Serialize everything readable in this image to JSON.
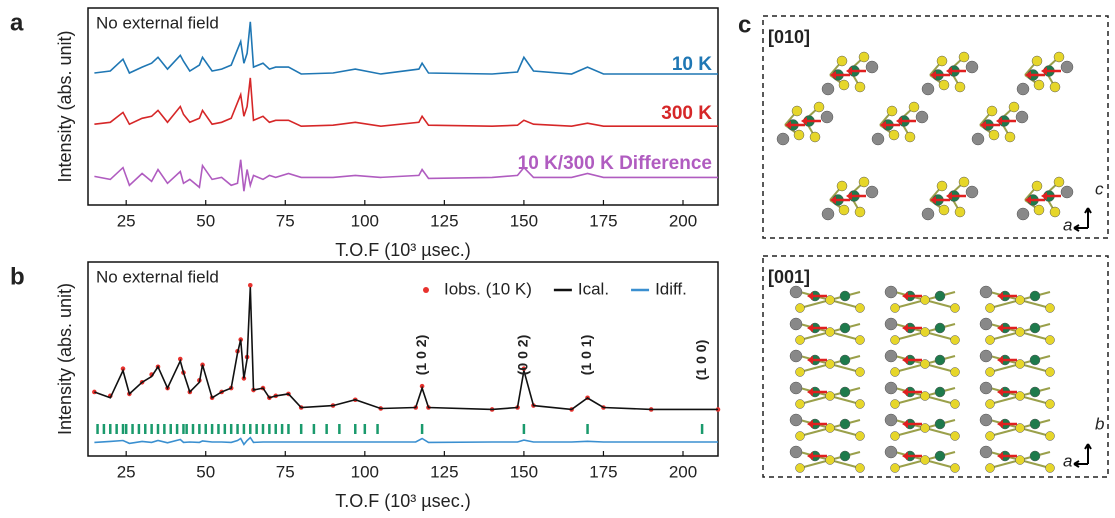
{
  "chart_data": [
    {
      "type": "line",
      "panel_label": "a",
      "annotation": "No external field",
      "x_label": "T.O.F (10³ µsec.)",
      "y_label": "Intensity (abs. unit)",
      "xlim": [
        13,
        211
      ],
      "xticks": [
        25,
        50,
        75,
        100,
        125,
        150,
        175,
        200
      ],
      "ylim": [
        0,
        10
      ],
      "x": [
        15,
        20,
        24,
        26,
        30,
        33,
        35,
        38,
        42,
        43,
        45,
        48,
        49,
        52,
        55,
        58,
        60,
        61,
        62,
        63,
        64,
        65,
        68,
        70,
        72,
        76,
        80,
        90,
        97,
        105,
        117,
        118,
        120,
        140,
        148,
        150,
        153,
        165,
        170,
        175,
        190,
        211
      ],
      "series": [
        {
          "name": "10 K",
          "color": "#1f77b4",
          "values": [
            6.7,
            6.8,
            7.4,
            6.7,
            7.0,
            7.2,
            7.5,
            6.9,
            7.6,
            7.3,
            6.8,
            7.1,
            7.5,
            6.8,
            6.9,
            7.1,
            7.9,
            8.3,
            7.2,
            7.7,
            9.3,
            7.0,
            7.2,
            6.9,
            7.0,
            7.0,
            6.65,
            6.7,
            6.9,
            6.65,
            6.9,
            7.2,
            6.7,
            6.65,
            6.75,
            7.5,
            6.8,
            6.65,
            7.0,
            6.65,
            6.65,
            6.65
          ]
        },
        {
          "name": "300 K",
          "color": "#d62728",
          "values": [
            4.1,
            4.2,
            4.7,
            4.1,
            4.4,
            4.5,
            4.8,
            4.2,
            5.0,
            4.6,
            4.2,
            4.4,
            4.8,
            4.1,
            4.2,
            4.4,
            5.2,
            5.6,
            4.5,
            5.0,
            6.45,
            4.3,
            4.5,
            4.2,
            4.3,
            4.3,
            4.0,
            4.05,
            4.2,
            4.0,
            4.2,
            4.5,
            4.05,
            4.0,
            4.05,
            4.3,
            4.1,
            4.0,
            4.15,
            4.0,
            4.0,
            4.0
          ]
        },
        {
          "name": "10 K/300 K Difference",
          "color": "#b05cc0",
          "values": [
            1.45,
            1.3,
            1.9,
            1.0,
            1.6,
            1.2,
            1.8,
            1.1,
            1.7,
            1.1,
            1.3,
            0.9,
            2.0,
            1.3,
            1.4,
            1.0,
            1.1,
            2.3,
            0.7,
            1.8,
            1.0,
            1.5,
            1.3,
            1.5,
            1.4,
            1.6,
            1.4,
            1.4,
            1.5,
            1.4,
            1.5,
            1.8,
            1.35,
            1.4,
            1.5,
            1.9,
            1.4,
            1.4,
            1.6,
            1.4,
            1.4,
            1.4
          ]
        }
      ]
    },
    {
      "type": "line",
      "panel_label": "b",
      "annotation": "No external field",
      "x_label": "T.O.F (10³ µsec.)",
      "y_label": "Intensity (abs. unit)",
      "xlim": [
        13,
        211
      ],
      "xticks": [
        25,
        50,
        75,
        100,
        125,
        150,
        175,
        200
      ],
      "ylim": [
        0,
        10
      ],
      "x": [
        15,
        20,
        24,
        26,
        30,
        33,
        35,
        38,
        42,
        43,
        45,
        48,
        49,
        52,
        55,
        58,
        60,
        61,
        62,
        63,
        64,
        65,
        68,
        70,
        72,
        76,
        80,
        90,
        97,
        105,
        116,
        118,
        120,
        140,
        148,
        150,
        153,
        165,
        170,
        175,
        190,
        211
      ],
      "series": [
        {
          "name": "Iobs. (10 K)",
          "color": "#e8322e",
          "mode": "markers",
          "values": [
            3.3,
            3.1,
            4.5,
            3.2,
            3.8,
            4.2,
            4.6,
            3.5,
            5.0,
            4.3,
            3.3,
            3.9,
            4.7,
            3.0,
            3.3,
            3.5,
            5.4,
            6.0,
            4.0,
            5.1,
            8.8,
            3.4,
            3.5,
            3.0,
            3.1,
            3.2,
            2.5,
            2.6,
            2.9,
            2.45,
            2.5,
            3.6,
            2.5,
            2.4,
            2.5,
            4.5,
            2.6,
            2.4,
            3.0,
            2.5,
            2.4,
            2.4
          ]
        },
        {
          "name": "Ical.",
          "color": "#111111",
          "mode": "line",
          "values": [
            3.3,
            3.0,
            4.4,
            3.2,
            3.8,
            4.1,
            4.6,
            3.5,
            4.9,
            4.3,
            3.3,
            3.8,
            4.7,
            3.0,
            3.3,
            3.5,
            5.3,
            6.0,
            4.0,
            5.0,
            8.7,
            3.4,
            3.5,
            3.0,
            3.1,
            3.2,
            2.5,
            2.6,
            2.9,
            2.45,
            2.5,
            3.5,
            2.5,
            2.4,
            2.5,
            4.4,
            2.6,
            2.4,
            2.99,
            2.5,
            2.4,
            2.4
          ]
        },
        {
          "name": "Idiff.",
          "color": "#3a8fd0",
          "mode": "line",
          "values": [
            0.7,
            0.75,
            0.8,
            0.65,
            0.75,
            0.7,
            0.8,
            0.68,
            0.85,
            0.7,
            0.72,
            0.7,
            0.78,
            0.72,
            0.72,
            0.7,
            0.8,
            0.9,
            0.6,
            0.8,
            0.95,
            0.7,
            0.72,
            0.72,
            0.72,
            0.72,
            0.72,
            0.72,
            0.72,
            0.72,
            0.72,
            0.9,
            0.7,
            0.72,
            0.72,
            0.82,
            0.72,
            0.72,
            0.76,
            0.72,
            0.72,
            0.72
          ]
        }
      ],
      "reflections": {
        "color": "#1a9a6c",
        "values": [
          16,
          18,
          20,
          22,
          24,
          25,
          27,
          29,
          31,
          33,
          35,
          37,
          39,
          41,
          43,
          44,
          46,
          48,
          50,
          52,
          54,
          56,
          58,
          60,
          62,
          64,
          66,
          68,
          70,
          72,
          74,
          76,
          80,
          84,
          88,
          92,
          97,
          100,
          104,
          118,
          150,
          170,
          206
        ]
      },
      "peak_labels": [
        {
          "x": 118,
          "label": "(1 0 2)"
        },
        {
          "x": 150,
          "label": "(0 0 2)"
        },
        {
          "x": 170,
          "label": "(1 0 1)"
        },
        {
          "x": 206,
          "label": "(1 0 0)"
        }
      ]
    }
  ],
  "structure": {
    "panel_label": "c",
    "views": [
      {
        "label": "[010]",
        "axes": [
          "c",
          "a"
        ]
      },
      {
        "label": "[001]",
        "axes": [
          "b",
          "a"
        ]
      }
    ]
  }
}
